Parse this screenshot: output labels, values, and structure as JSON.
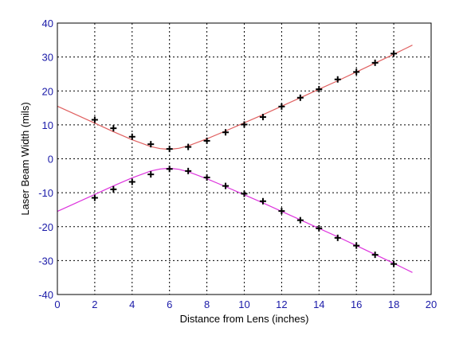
{
  "chart_data": {
    "type": "scatter",
    "title": "",
    "xlabel": "Distance from Lens (inches)",
    "ylabel": "Laser Beam Width (mils)",
    "xlim": [
      0,
      20
    ],
    "ylim": [
      -40,
      40
    ],
    "x_ticks": [
      0,
      2,
      4,
      6,
      8,
      10,
      12,
      14,
      16,
      18,
      20
    ],
    "y_ticks": [
      40,
      30,
      20,
      10,
      0,
      -10,
      -20,
      -30,
      -40
    ],
    "grid": true,
    "series": [
      {
        "kind": "points",
        "marker": "cross",
        "color": "#000000",
        "x": [
          2,
          3,
          4,
          5,
          6,
          7,
          8,
          9,
          10,
          11,
          12,
          13,
          14,
          15,
          16,
          17,
          18
        ],
        "y": [
          11.5,
          9,
          6.5,
          4.3,
          2.9,
          3.5,
          5.3,
          7.8,
          10.1,
          12.3,
          15.4,
          18,
          20.5,
          23.4,
          25.6,
          28.3,
          31
        ]
      },
      {
        "kind": "points",
        "marker": "cross",
        "color": "#000000",
        "x": [
          2,
          3,
          4,
          5,
          6,
          7,
          8,
          9,
          10,
          11,
          12,
          13,
          14,
          15,
          16,
          17,
          18
        ],
        "y": [
          -11.5,
          -9,
          -6.8,
          -4.6,
          -3,
          -3.6,
          -5.5,
          -8,
          -10.3,
          -12.5,
          -15.4,
          -18.1,
          -20.5,
          -23.3,
          -25.6,
          -28.3,
          -31
        ]
      },
      {
        "kind": "line",
        "color": "#e06060",
        "x": [
          0,
          1,
          2,
          3,
          4,
          5,
          5.5,
          6,
          6.5,
          7,
          8,
          9,
          10,
          11,
          12,
          13,
          14,
          15,
          16,
          17,
          18,
          19
        ],
        "y": [
          15.5,
          13,
          10.5,
          8,
          5.6,
          3.6,
          3.0,
          2.8,
          3.1,
          3.8,
          5.9,
          8.2,
          10.6,
          13.0,
          15.5,
          18.0,
          20.5,
          23.0,
          25.6,
          28.2,
          30.8,
          33.5
        ]
      },
      {
        "kind": "line",
        "color": "#dd33dd",
        "x": [
          0,
          1,
          2,
          3,
          4,
          5,
          5.5,
          6,
          6.5,
          7,
          8,
          9,
          10,
          11,
          12,
          13,
          14,
          15,
          16,
          17,
          18,
          19
        ],
        "y": [
          -15.5,
          -13,
          -10.5,
          -8,
          -5.6,
          -3.6,
          -3.0,
          -2.8,
          -3.1,
          -3.8,
          -5.9,
          -8.2,
          -10.6,
          -13.0,
          -15.5,
          -18.0,
          -20.5,
          -23.0,
          -25.6,
          -28.2,
          -30.8,
          -33.5
        ]
      }
    ]
  }
}
